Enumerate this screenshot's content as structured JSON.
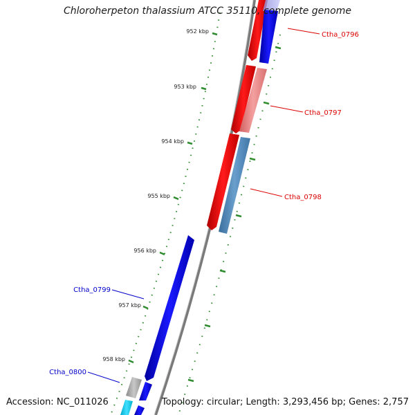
{
  "title": "Chloroherpeton thalassium ATCC 35110, complete genome",
  "footer": {
    "accession": "Accession: NC_011026",
    "summary": "Topology: circular; Length: 3,293,456 bp; Genes: 2,757"
  },
  "ticks": [
    "952 kbp",
    "953 kbp",
    "954 kbp",
    "955 kbp",
    "956 kbp",
    "957 kbp",
    "958 kbp"
  ],
  "genes": [
    {
      "name": "Ctha_0796",
      "color": "#dd0000"
    },
    {
      "name": "Ctha_0797",
      "color": "#dd0000"
    },
    {
      "name": "Ctha_0798",
      "color": "#dd0000"
    },
    {
      "name": "Ctha_0799",
      "color": "#0000cc"
    },
    {
      "name": "Ctha_0800",
      "color": "#0000cc"
    }
  ],
  "colors": {
    "forward": "#ff0000",
    "forward_light": "#f08080",
    "reverse": "#0000ff",
    "reverse_light": "#4682b4",
    "rna": "#b0b0b0",
    "cyan": "#00ccee",
    "backbone": "#888888",
    "tick": "#2e8b2e"
  }
}
